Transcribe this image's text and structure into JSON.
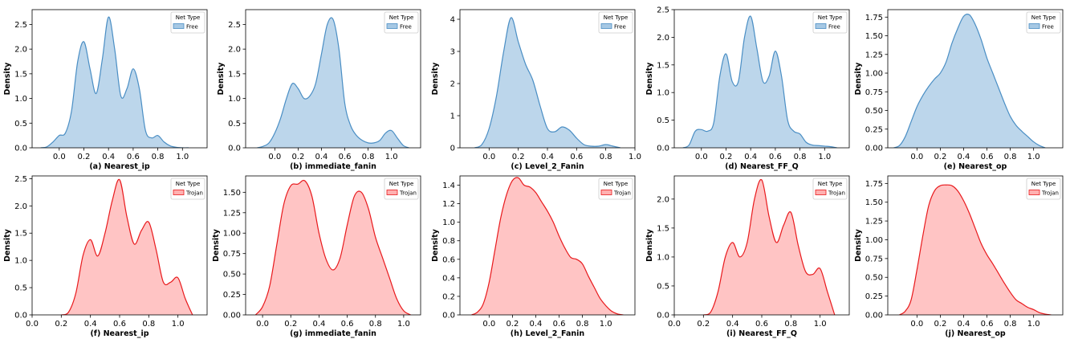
{
  "figure": {
    "y_axis_label": "Density",
    "legend_title": "Net Type",
    "colors": {
      "free_fill": "#a6c8e4",
      "free_line": "#4a8ec4",
      "trojan_fill": "#ffb0b0",
      "trojan_line": "#e8191c"
    }
  },
  "chart_data": [
    {
      "type": "area",
      "title": "(a) Nearest_ip",
      "series_name": "Free",
      "xlim": [
        -0.22,
        1.2
      ],
      "ylim": [
        0,
        2.8
      ],
      "xticks": [
        0.0,
        0.2,
        0.4,
        0.6,
        0.8,
        1.0
      ],
      "xtick_labels": [
        "0.0",
        "0.2",
        "0.4",
        "0.6",
        "0.8",
        "1.0"
      ],
      "yticks": [
        0,
        0.5,
        1.0,
        1.5,
        2.0,
        2.5
      ],
      "ytick_labels": [
        "0.0",
        "0.5",
        "1.0",
        "1.5",
        "2.0",
        "2.5"
      ],
      "x": [
        -0.15,
        -0.1,
        -0.05,
        0.0,
        0.05,
        0.1,
        0.15,
        0.2,
        0.25,
        0.3,
        0.35,
        0.4,
        0.45,
        0.5,
        0.55,
        0.6,
        0.65,
        0.7,
        0.75,
        0.8,
        0.85,
        0.9,
        0.95,
        1.0,
        1.05
      ],
      "y": [
        0.0,
        0.02,
        0.12,
        0.25,
        0.3,
        0.75,
        1.75,
        2.15,
        1.6,
        1.1,
        1.8,
        2.65,
        2.0,
        1.05,
        1.2,
        1.6,
        1.2,
        0.35,
        0.2,
        0.25,
        0.12,
        0.04,
        0.01,
        0.0,
        0.0
      ]
    },
    {
      "type": "area",
      "title": "(b) immediate_fanin",
      "series_name": "Free",
      "xlim": [
        -0.25,
        1.25
      ],
      "ylim": [
        0,
        2.8
      ],
      "xticks": [
        0.0,
        0.2,
        0.4,
        0.6,
        0.8,
        1.0
      ],
      "xtick_labels": [
        "0.0",
        "0.2",
        "0.4",
        "0.6",
        "0.8",
        "1.0"
      ],
      "yticks": [
        0,
        0.5,
        1.0,
        1.5,
        2.0,
        2.5
      ],
      "ytick_labels": [
        "0.0",
        "0.5",
        "1.0",
        "1.5",
        "2.0",
        "2.5"
      ],
      "x": [
        -0.15,
        -0.1,
        -0.05,
        0.0,
        0.05,
        0.1,
        0.15,
        0.2,
        0.25,
        0.3,
        0.35,
        0.4,
        0.45,
        0.5,
        0.55,
        0.6,
        0.65,
        0.7,
        0.75,
        0.8,
        0.85,
        0.9,
        0.95,
        1.0,
        1.05,
        1.1,
        1.15
      ],
      "y": [
        0.0,
        0.03,
        0.1,
        0.3,
        0.6,
        1.0,
        1.3,
        1.2,
        1.0,
        1.05,
        1.3,
        1.9,
        2.5,
        2.6,
        2.0,
        0.9,
        0.45,
        0.25,
        0.15,
        0.1,
        0.1,
        0.15,
        0.3,
        0.35,
        0.2,
        0.05,
        0.0
      ]
    },
    {
      "type": "area",
      "title": "(c) Level_2_Fanin",
      "series_name": "Free",
      "xlim": [
        -0.2,
        1.0
      ],
      "ylim": [
        0,
        4.3
      ],
      "xticks": [
        0.0,
        0.2,
        0.4,
        0.6,
        0.8,
        1.0
      ],
      "xtick_labels": [
        "0.0",
        "0.2",
        "0.4",
        "0.6",
        "0.8",
        "1.0"
      ],
      "yticks": [
        0,
        1,
        2,
        3,
        4
      ],
      "ytick_labels": [
        "0",
        "1",
        "2",
        "3",
        "4"
      ],
      "x": [
        -0.1,
        -0.05,
        0.0,
        0.05,
        0.1,
        0.15,
        0.2,
        0.25,
        0.3,
        0.35,
        0.4,
        0.45,
        0.5,
        0.55,
        0.6,
        0.65,
        0.7,
        0.75,
        0.8,
        0.85,
        0.9
      ],
      "y": [
        0.0,
        0.1,
        0.6,
        1.6,
        3.0,
        4.05,
        3.3,
        2.6,
        2.1,
        1.3,
        0.6,
        0.5,
        0.65,
        0.55,
        0.3,
        0.1,
        0.05,
        0.05,
        0.1,
        0.05,
        0.0
      ]
    },
    {
      "type": "area",
      "title": "(d) Nearest_FF_Q",
      "series_name": "Free",
      "xlim": [
        -0.22,
        1.2
      ],
      "ylim": [
        0,
        2.5
      ],
      "xticks": [
        0.0,
        0.2,
        0.4,
        0.6,
        0.8,
        1.0
      ],
      "xtick_labels": [
        "0.0",
        "0.2",
        "0.4",
        "0.6",
        "0.8",
        "1.0"
      ],
      "yticks": [
        0,
        0.5,
        1.0,
        1.5,
        2.0,
        2.5
      ],
      "ytick_labels": [
        "0.0",
        "0.5",
        "1.0",
        "1.5",
        "2.0",
        "2.5"
      ],
      "x": [
        -0.15,
        -0.1,
        -0.05,
        0.0,
        0.05,
        0.1,
        0.15,
        0.2,
        0.25,
        0.3,
        0.35,
        0.4,
        0.45,
        0.5,
        0.55,
        0.6,
        0.65,
        0.7,
        0.75,
        0.8,
        0.85,
        0.9,
        0.95,
        1.0,
        1.05,
        1.1
      ],
      "y": [
        0.0,
        0.05,
        0.3,
        0.33,
        0.3,
        0.45,
        1.3,
        1.7,
        1.2,
        1.2,
        2.0,
        2.38,
        1.8,
        1.2,
        1.3,
        1.75,
        1.3,
        0.5,
        0.3,
        0.25,
        0.1,
        0.05,
        0.04,
        0.03,
        0.02,
        0.0
      ]
    },
    {
      "type": "area",
      "title": "(e) Nearest_op",
      "series_name": "Free",
      "xlim": [
        -0.25,
        1.25
      ],
      "ylim": [
        0,
        1.85
      ],
      "xticks": [
        0.0,
        0.2,
        0.4,
        0.6,
        0.8,
        1.0
      ],
      "xtick_labels": [
        "0.0",
        "0.2",
        "0.4",
        "0.6",
        "0.8",
        "1.0"
      ],
      "yticks": [
        0,
        0.25,
        0.5,
        0.75,
        1.0,
        1.25,
        1.5,
        1.75
      ],
      "ytick_labels": [
        "0.00",
        "0.25",
        "0.50",
        "0.75",
        "1.00",
        "1.25",
        "1.50",
        "1.75"
      ],
      "x": [
        -0.2,
        -0.15,
        -0.1,
        -0.05,
        0.0,
        0.05,
        0.1,
        0.15,
        0.2,
        0.25,
        0.3,
        0.35,
        0.4,
        0.45,
        0.5,
        0.55,
        0.6,
        0.65,
        0.7,
        0.75,
        0.8,
        0.85,
        0.9,
        0.95,
        1.0,
        1.05,
        1.1
      ],
      "y": [
        0.0,
        0.03,
        0.15,
        0.35,
        0.55,
        0.7,
        0.82,
        0.92,
        1.0,
        1.15,
        1.4,
        1.6,
        1.76,
        1.78,
        1.65,
        1.45,
        1.2,
        1.0,
        0.8,
        0.6,
        0.42,
        0.3,
        0.22,
        0.15,
        0.08,
        0.03,
        0.0
      ]
    },
    {
      "type": "area",
      "title": "(f) Nearest_ip",
      "series_name": "Trojan",
      "xlim": [
        0.0,
        1.2
      ],
      "ylim": [
        0,
        2.55
      ],
      "xticks": [
        0.0,
        0.2,
        0.4,
        0.6,
        0.8,
        1.0
      ],
      "xtick_labels": [
        "0.0",
        "0.2",
        "0.4",
        "0.6",
        "0.8",
        "1.0"
      ],
      "yticks": [
        0,
        0.5,
        1.0,
        1.5,
        2.0,
        2.5
      ],
      "ytick_labels": [
        "0.0",
        "0.5",
        "1.0",
        "1.5",
        "2.0",
        "2.5"
      ],
      "x": [
        0.2,
        0.25,
        0.3,
        0.35,
        0.4,
        0.45,
        0.5,
        0.55,
        0.6,
        0.65,
        0.7,
        0.75,
        0.8,
        0.85,
        0.9,
        0.95,
        1.0,
        1.05,
        1.1
      ],
      "y": [
        0.0,
        0.05,
        0.4,
        1.1,
        1.38,
        1.08,
        1.5,
        2.1,
        2.48,
        1.8,
        1.3,
        1.55,
        1.7,
        1.2,
        0.6,
        0.6,
        0.68,
        0.3,
        0.0
      ]
    },
    {
      "type": "area",
      "title": "(g) immediate_fanin",
      "series_name": "Trojan",
      "xlim": [
        -0.12,
        1.12
      ],
      "ylim": [
        0,
        1.7
      ],
      "xticks": [
        0.0,
        0.2,
        0.4,
        0.6,
        0.8,
        1.0
      ],
      "xtick_labels": [
        "0.0",
        "0.2",
        "0.4",
        "0.6",
        "0.8",
        "1.0"
      ],
      "yticks": [
        0,
        0.25,
        0.5,
        0.75,
        1.0,
        1.25,
        1.5
      ],
      "ytick_labels": [
        "0.00",
        "0.25",
        "0.50",
        "0.75",
        "1.00",
        "1.25",
        "1.50"
      ],
      "x": [
        -0.05,
        0.0,
        0.05,
        0.1,
        0.15,
        0.2,
        0.25,
        0.3,
        0.35,
        0.4,
        0.45,
        0.5,
        0.55,
        0.6,
        0.65,
        0.7,
        0.75,
        0.8,
        0.85,
        0.9,
        0.95,
        1.0,
        1.05
      ],
      "y": [
        0.0,
        0.1,
        0.35,
        0.85,
        1.35,
        1.58,
        1.6,
        1.64,
        1.45,
        1.0,
        0.68,
        0.55,
        0.7,
        1.1,
        1.45,
        1.5,
        1.3,
        0.95,
        0.7,
        0.45,
        0.2,
        0.05,
        0.0
      ]
    },
    {
      "type": "area",
      "title": "(h) Level_2_Fanin",
      "series_name": "Trojan",
      "xlim": [
        -0.25,
        1.25
      ],
      "ylim": [
        0,
        1.5
      ],
      "xticks": [
        0.0,
        0.2,
        0.4,
        0.6,
        0.8,
        1.0
      ],
      "xtick_labels": [
        "0.0",
        "0.2",
        "0.4",
        "0.6",
        "0.8",
        "1.0"
      ],
      "yticks": [
        0,
        0.2,
        0.4,
        0.6,
        0.8,
        1.0,
        1.2,
        1.4
      ],
      "ytick_labels": [
        "0.0",
        "0.2",
        "0.4",
        "0.6",
        "0.8",
        "1.0",
        "1.2",
        "1.4"
      ],
      "x": [
        -0.15,
        -0.1,
        -0.05,
        0.0,
        0.05,
        0.1,
        0.15,
        0.2,
        0.25,
        0.3,
        0.35,
        0.4,
        0.45,
        0.5,
        0.55,
        0.6,
        0.65,
        0.7,
        0.75,
        0.8,
        0.85,
        0.9,
        0.95,
        1.0,
        1.05,
        1.1,
        1.15
      ],
      "y": [
        0.0,
        0.03,
        0.12,
        0.35,
        0.7,
        1.05,
        1.3,
        1.45,
        1.48,
        1.4,
        1.38,
        1.32,
        1.22,
        1.12,
        1.0,
        0.85,
        0.72,
        0.62,
        0.6,
        0.55,
        0.42,
        0.3,
        0.18,
        0.1,
        0.04,
        0.01,
        0.0
      ]
    },
    {
      "type": "area",
      "title": "(i) Nearest_FF_Q",
      "series_name": "Trojan",
      "xlim": [
        0.0,
        1.2
      ],
      "ylim": [
        0,
        2.4
      ],
      "xticks": [
        0.0,
        0.2,
        0.4,
        0.6,
        0.8,
        1.0
      ],
      "xtick_labels": [
        "0.0",
        "0.2",
        "0.4",
        "0.6",
        "0.8",
        "1.0"
      ],
      "yticks": [
        0,
        0.5,
        1.0,
        1.5,
        2.0
      ],
      "ytick_labels": [
        "0.0",
        "0.5",
        "1.0",
        "1.5",
        "2.0"
      ],
      "x": [
        0.2,
        0.25,
        0.3,
        0.35,
        0.4,
        0.45,
        0.5,
        0.55,
        0.6,
        0.65,
        0.7,
        0.75,
        0.8,
        0.85,
        0.9,
        0.95,
        1.0,
        1.05,
        1.1
      ],
      "y": [
        0.0,
        0.05,
        0.4,
        1.0,
        1.25,
        1.0,
        1.25,
        2.0,
        2.33,
        1.7,
        1.25,
        1.55,
        1.77,
        1.2,
        0.75,
        0.7,
        0.8,
        0.4,
        0.0
      ]
    },
    {
      "type": "area",
      "title": "(j) Nearest_op",
      "series_name": "Trojan",
      "xlim": [
        -0.25,
        1.25
      ],
      "ylim": [
        0,
        1.85
      ],
      "xticks": [
        0.0,
        0.2,
        0.4,
        0.6,
        0.8,
        1.0
      ],
      "xtick_labels": [
        "0.0",
        "0.2",
        "0.4",
        "0.6",
        "0.8",
        "1.0"
      ],
      "yticks": [
        0,
        0.25,
        0.5,
        0.75,
        1.0,
        1.25,
        1.5,
        1.75
      ],
      "ytick_labels": [
        "0.00",
        "0.25",
        "0.50",
        "0.75",
        "1.00",
        "1.25",
        "1.50",
        "1.75"
      ],
      "x": [
        -0.15,
        -0.1,
        -0.05,
        0.0,
        0.05,
        0.1,
        0.15,
        0.2,
        0.25,
        0.3,
        0.35,
        0.4,
        0.45,
        0.5,
        0.55,
        0.6,
        0.65,
        0.7,
        0.75,
        0.8,
        0.85,
        0.9,
        0.95,
        1.0,
        1.05,
        1.1,
        1.15
      ],
      "y": [
        0.0,
        0.05,
        0.2,
        0.6,
        1.05,
        1.45,
        1.65,
        1.72,
        1.73,
        1.72,
        1.65,
        1.52,
        1.35,
        1.15,
        0.95,
        0.8,
        0.68,
        0.55,
        0.42,
        0.3,
        0.2,
        0.15,
        0.1,
        0.07,
        0.03,
        0.01,
        0.0
      ]
    }
  ]
}
